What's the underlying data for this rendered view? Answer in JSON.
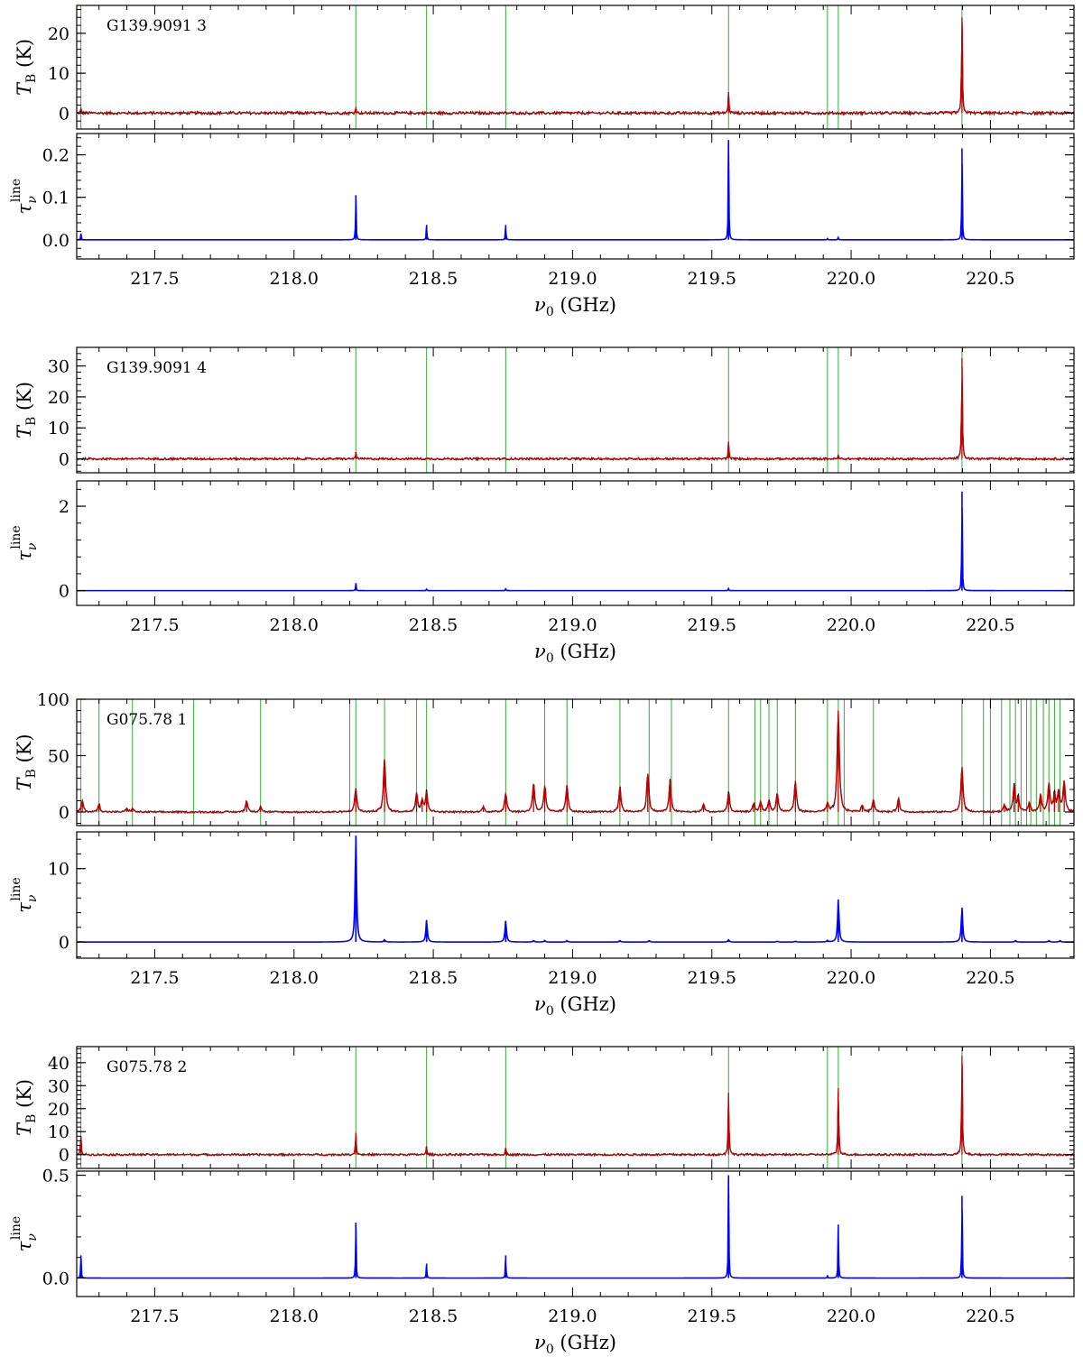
{
  "chart_data": [
    {
      "type": "line",
      "source_label": "G139.9091 3",
      "xlabel": "ν0 (GHz)",
      "xlim": [
        217.22,
        220.8
      ],
      "xticks": [
        "217.5",
        "218.0",
        "218.5",
        "219.0",
        "219.5",
        "220.0",
        "220.5"
      ],
      "top": {
        "ylabel": "TB (K)",
        "ylim": [
          -4,
          27
        ],
        "yticks": [
          0,
          10,
          20
        ],
        "noise": 0.35,
        "lines": [
          [
            217.235,
            1.0
          ],
          [
            218.222,
            1.5
          ],
          [
            219.56,
            5.0
          ],
          [
            220.398,
            24.0
          ]
        ],
        "markers": [
          217.235,
          218.222,
          218.476,
          218.76,
          219.56,
          219.915,
          219.954,
          220.398
        ],
        "series": [
          {
            "name": "observed",
            "color": "#000000"
          },
          {
            "name": "model",
            "color": "#c00000"
          }
        ]
      },
      "bottom": {
        "ylabel": "τνline",
        "ylim": [
          -0.045,
          0.25
        ],
        "yticks": [
          0.0,
          0.1,
          0.2
        ],
        "lines": [
          [
            217.235,
            0.015
          ],
          [
            218.222,
            0.105
          ],
          [
            218.476,
            0.035
          ],
          [
            218.76,
            0.035
          ],
          [
            219.56,
            0.235
          ],
          [
            219.915,
            0.003
          ],
          [
            219.954,
            0.006
          ],
          [
            220.398,
            0.215
          ]
        ],
        "series": [
          {
            "name": "tau",
            "color": "#0000ff"
          }
        ]
      }
    },
    {
      "type": "line",
      "source_label": "G139.9091 4",
      "xlabel": "ν0 (GHz)",
      "xlim": [
        217.22,
        220.8
      ],
      "xticks": [
        "217.5",
        "218.0",
        "218.5",
        "219.0",
        "219.5",
        "220.0",
        "220.5"
      ],
      "top": {
        "ylabel": "TB (K)",
        "ylim": [
          -4.5,
          36
        ],
        "yticks": [
          0,
          10,
          20,
          30
        ],
        "noise": 0.35,
        "lines": [
          [
            218.222,
            2.0
          ],
          [
            219.56,
            5.5
          ],
          [
            219.954,
            1.0
          ],
          [
            220.398,
            32.5
          ]
        ],
        "markers": [
          218.222,
          218.476,
          218.76,
          219.56,
          219.915,
          219.954,
          220.398
        ],
        "series": [
          {
            "name": "observed",
            "color": "#000000"
          },
          {
            "name": "model",
            "color": "#c00000"
          }
        ]
      },
      "bottom": {
        "ylabel": "τνline",
        "ylim": [
          -0.35,
          2.6
        ],
        "yticks": [
          0,
          2
        ],
        "lines": [
          [
            218.222,
            0.18
          ],
          [
            218.476,
            0.04
          ],
          [
            218.76,
            0.05
          ],
          [
            219.56,
            0.05
          ],
          [
            220.398,
            2.35
          ]
        ],
        "series": [
          {
            "name": "tau",
            "color": "#0000ff"
          }
        ]
      }
    },
    {
      "type": "line",
      "source_label": "G075.78 1",
      "xlabel": "ν0 (GHz)",
      "xlim": [
        217.22,
        220.8
      ],
      "xticks": [
        "217.5",
        "218.0",
        "218.5",
        "219.0",
        "219.5",
        "220.0",
        "220.5"
      ],
      "top": {
        "ylabel": "TB (K)",
        "ylim": [
          -12,
          100
        ],
        "yticks": [
          0,
          50,
          100
        ],
        "noise": 0.8,
        "lines": [
          [
            217.24,
            10
          ],
          [
            217.3,
            7
          ],
          [
            217.4,
            3
          ],
          [
            217.42,
            3
          ],
          [
            217.83,
            10
          ],
          [
            217.88,
            5
          ],
          [
            218.222,
            20
          ],
          [
            218.325,
            47
          ],
          [
            218.44,
            17
          ],
          [
            218.46,
            10
          ],
          [
            218.476,
            17
          ],
          [
            218.68,
            5
          ],
          [
            218.76,
            17
          ],
          [
            218.86,
            25
          ],
          [
            218.9,
            23
          ],
          [
            218.98,
            24
          ],
          [
            219.17,
            22
          ],
          [
            219.27,
            34
          ],
          [
            219.35,
            26
          ],
          [
            219.47,
            7
          ],
          [
            219.56,
            16
          ],
          [
            219.65,
            7
          ],
          [
            219.675,
            9
          ],
          [
            219.705,
            10
          ],
          [
            219.735,
            16
          ],
          [
            219.8,
            27
          ],
          [
            219.915,
            7
          ],
          [
            219.954,
            90
          ],
          [
            220.04,
            6
          ],
          [
            220.08,
            11
          ],
          [
            220.17,
            12
          ],
          [
            220.398,
            40
          ],
          [
            220.55,
            6
          ],
          [
            220.585,
            22
          ],
          [
            220.6,
            12
          ],
          [
            220.64,
            8
          ],
          [
            220.68,
            15
          ],
          [
            220.71,
            25
          ],
          [
            220.73,
            14
          ],
          [
            220.745,
            18
          ],
          [
            220.765,
            27
          ]
        ],
        "markers": [
          217.235,
          217.3,
          217.42,
          217.64,
          217.88,
          218.2,
          218.222,
          218.325,
          218.44,
          218.476,
          218.76,
          218.9,
          218.98,
          219.17,
          219.275,
          219.355,
          219.56,
          219.655,
          219.675,
          219.705,
          219.735,
          219.8,
          219.915,
          219.954,
          219.975,
          220.08,
          220.398,
          220.475,
          220.5,
          220.54,
          220.57,
          220.59,
          220.61,
          220.63,
          220.645,
          220.665,
          220.69,
          220.71,
          220.73,
          220.75
        ],
        "series": [
          {
            "name": "observed",
            "color": "#000000"
          },
          {
            "name": "model",
            "color": "#c00000"
          }
        ]
      },
      "bottom": {
        "ylabel": "τνline",
        "ylim": [
          -2.2,
          15
        ],
        "yticks": [
          0,
          10
        ],
        "lines": [
          [
            217.235,
            0.05
          ],
          [
            218.222,
            14.5
          ],
          [
            218.325,
            0.3
          ],
          [
            218.476,
            3.0
          ],
          [
            218.76,
            2.9
          ],
          [
            218.86,
            0.2
          ],
          [
            218.9,
            0.2
          ],
          [
            218.98,
            0.2
          ],
          [
            219.17,
            0.2
          ],
          [
            219.275,
            0.2
          ],
          [
            219.56,
            0.3
          ],
          [
            219.735,
            0.1
          ],
          [
            219.8,
            0.1
          ],
          [
            219.915,
            0.2
          ],
          [
            219.954,
            5.8
          ],
          [
            220.398,
            4.7
          ],
          [
            220.59,
            0.2
          ],
          [
            220.71,
            0.2
          ],
          [
            220.75,
            0.2
          ]
        ],
        "series": [
          {
            "name": "tau",
            "color": "#0000ff"
          }
        ]
      }
    },
    {
      "type": "line",
      "source_label": "G075.78 2",
      "xlabel": "ν0 (GHz)",
      "xlim": [
        217.22,
        220.8
      ],
      "xticks": [
        "217.5",
        "218.0",
        "218.5",
        "219.0",
        "219.5",
        "220.0",
        "220.5"
      ],
      "top": {
        "ylabel": "TB (K)",
        "ylim": [
          -6,
          47
        ],
        "yticks": [
          0,
          10,
          20,
          30,
          40
        ],
        "noise": 0.45,
        "lines": [
          [
            217.235,
            8
          ],
          [
            218.222,
            9.5
          ],
          [
            218.476,
            3.5
          ],
          [
            218.76,
            3
          ],
          [
            219.56,
            27
          ],
          [
            219.954,
            29
          ],
          [
            220.398,
            43
          ]
        ],
        "markers": [
          217.235,
          218.222,
          218.476,
          218.76,
          219.56,
          219.915,
          219.954,
          220.398
        ],
        "series": [
          {
            "name": "observed",
            "color": "#000000"
          },
          {
            "name": "model",
            "color": "#c00000"
          }
        ]
      },
      "bottom": {
        "ylabel": "τνline",
        "ylim": [
          -0.09,
          0.52
        ],
        "yticks": [
          0.0,
          0.5
        ],
        "lines": [
          [
            217.235,
            0.11
          ],
          [
            218.222,
            0.27
          ],
          [
            218.476,
            0.07
          ],
          [
            218.76,
            0.11
          ],
          [
            219.56,
            0.5
          ],
          [
            219.915,
            0.01
          ],
          [
            219.954,
            0.26
          ],
          [
            220.398,
            0.4
          ]
        ],
        "series": [
          {
            "name": "tau",
            "color": "#0000ff"
          }
        ]
      }
    }
  ]
}
